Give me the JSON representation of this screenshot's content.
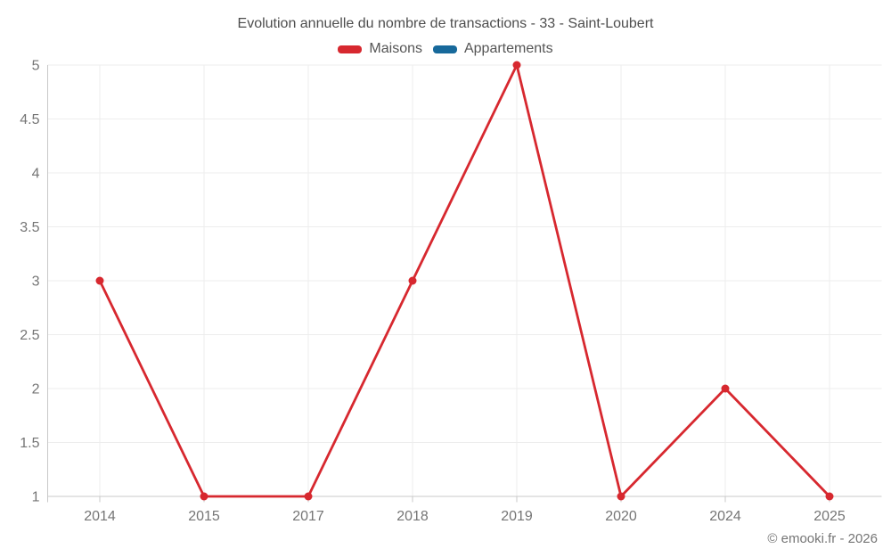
{
  "chart_data": {
    "type": "line",
    "title": "Evolution annuelle du nombre de transactions - 33 - Saint-Loubert",
    "categories": [
      "2014",
      "2015",
      "2017",
      "2018",
      "2019",
      "2020",
      "2024",
      "2025"
    ],
    "series": [
      {
        "name": "Maisons",
        "color": "#d7282f",
        "values": [
          3,
          1,
          1,
          3,
          5,
          1,
          2,
          1
        ]
      },
      {
        "name": "Appartements",
        "color": "#17699b",
        "values": []
      }
    ],
    "ylim": [
      1,
      5
    ],
    "ytick_step": 0.5,
    "grid": true,
    "legend_position": "top"
  },
  "footer": {
    "watermark": "© emooki.fr - 2026"
  },
  "colors": {
    "grid": "#ededed",
    "axis": "#c9c9c9",
    "tick_label": "#757575",
    "title": "#4d4d4d",
    "legend_text": "#555555",
    "watermark": "#757575"
  }
}
